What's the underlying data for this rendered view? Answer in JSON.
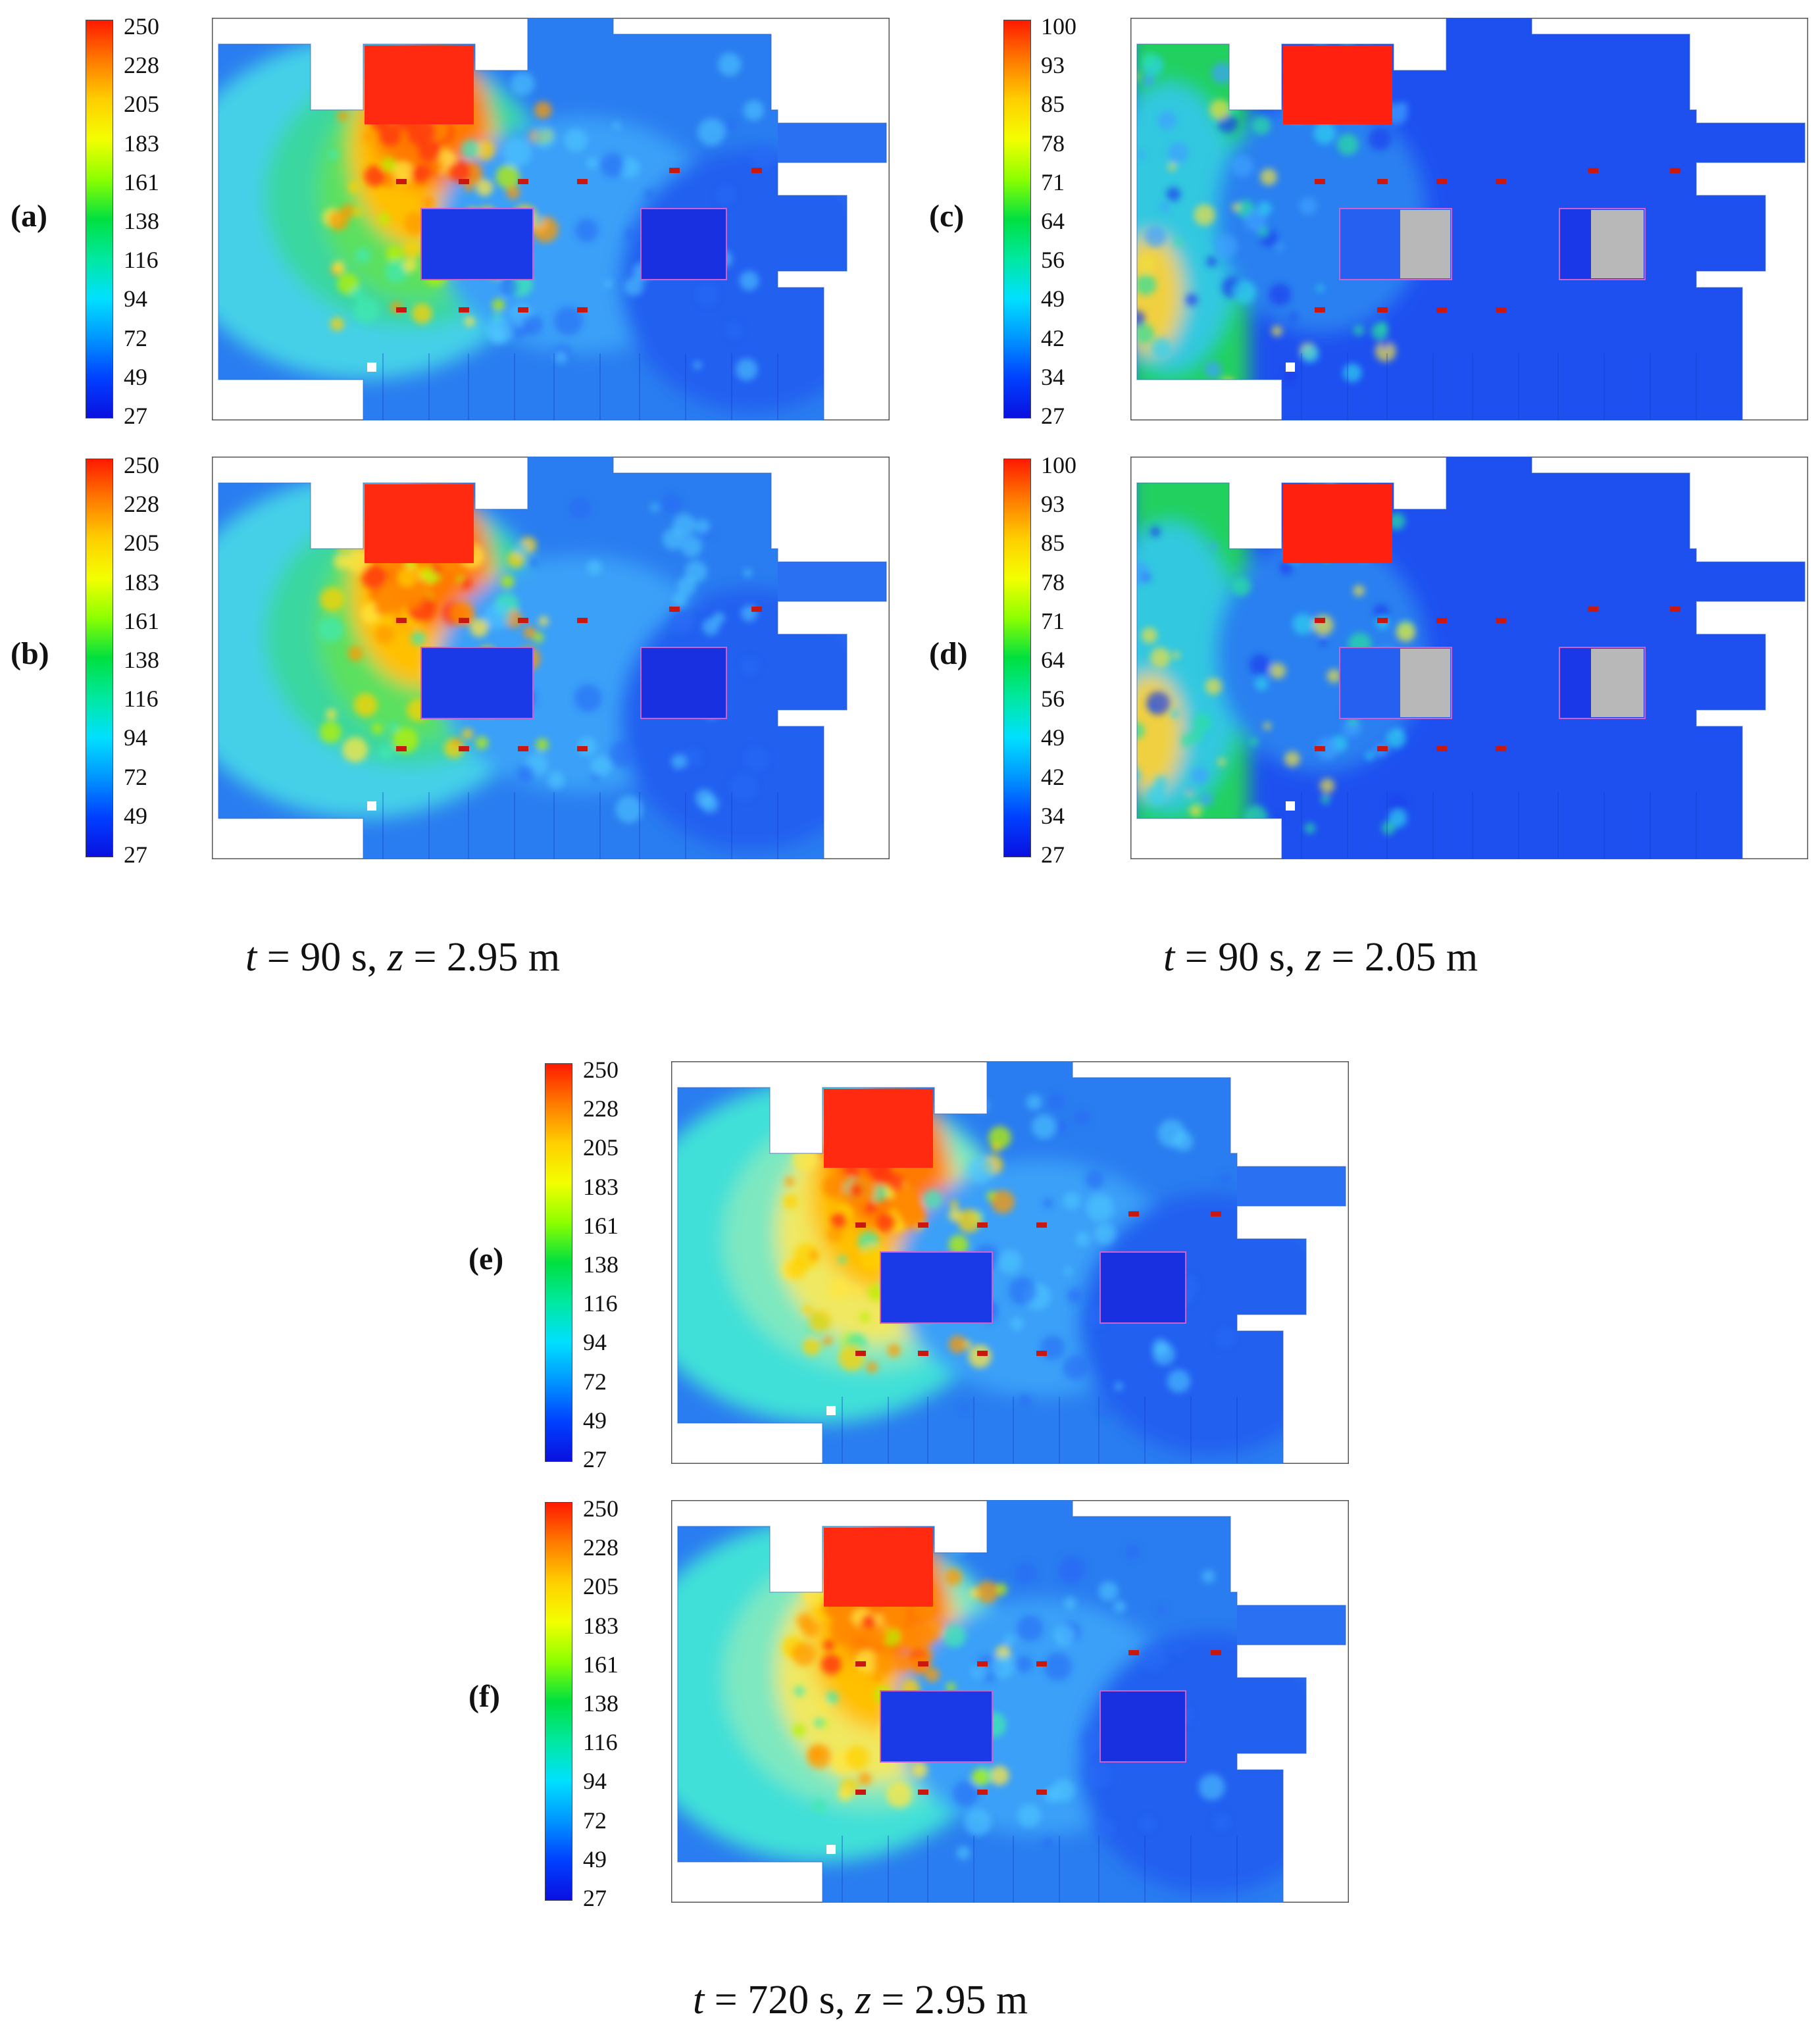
{
  "panels": [
    {
      "id": "a",
      "label": "(a)",
      "scale": "temp250"
    },
    {
      "id": "b",
      "label": "(b)",
      "scale": "temp250"
    },
    {
      "id": "c",
      "label": "(c)",
      "scale": "visibility100"
    },
    {
      "id": "d",
      "label": "(d)",
      "scale": "visibility100"
    },
    {
      "id": "e",
      "label": "(e)",
      "scale": "temp250"
    },
    {
      "id": "f",
      "label": "(f)",
      "scale": "temp250"
    }
  ],
  "scales": {
    "temp250": [
      "250",
      "228",
      "205",
      "183",
      "161",
      "138",
      "116",
      "94",
      "72",
      "49",
      "27"
    ],
    "visibility100": [
      "100",
      "93",
      "85",
      "78",
      "71",
      "64",
      "56",
      "49",
      "42",
      "34",
      "27"
    ]
  },
  "colormap": [
    "#ff1a00",
    "#ff7a00",
    "#ffcf00",
    "#f3ff00",
    "#8cff00",
    "#00e040",
    "#00e8a0",
    "#00e0ff",
    "#0096ff",
    "#0040ff",
    "#0a10e0"
  ],
  "captions": {
    "top_left": {
      "t_var": "t",
      "eq1": " = 90 s, ",
      "z_var": "z",
      "eq2": " = 2.95 m"
    },
    "top_right": {
      "t_var": "t",
      "eq1": " = 90 s, ",
      "z_var": "z",
      "eq2": " = 2.05 m"
    },
    "bottom": {
      "t_var": "t",
      "eq1": " = 720 s, ",
      "z_var": "z",
      "eq2": " = 2.95 m"
    }
  }
}
